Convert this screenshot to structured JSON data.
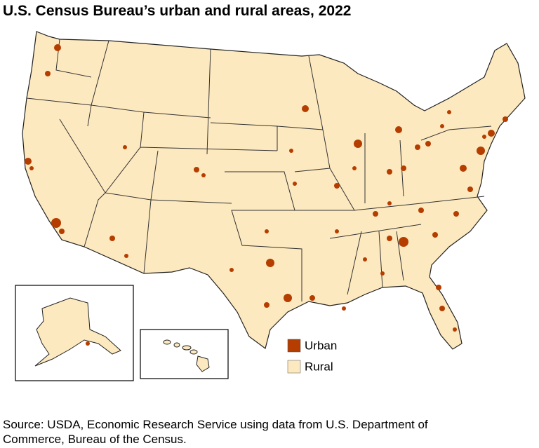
{
  "header": {
    "title": "U.S. Census Bureau’s urban and rural areas, 2022"
  },
  "legend": [
    {
      "label": "Urban",
      "color": "#b53d00"
    },
    {
      "label": "Rural",
      "color": "#fde9bf"
    }
  ],
  "source": [
    "Source: USDA, Economic Research Service using data from U.S. Department of",
    "Commerce, Bureau of the Census."
  ]
}
